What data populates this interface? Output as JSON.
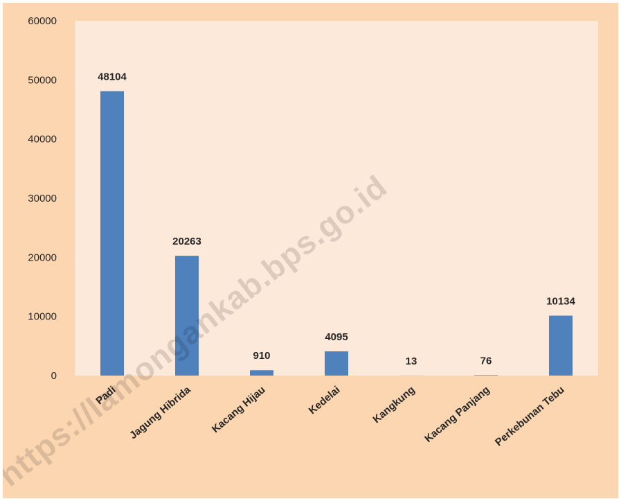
{
  "chart_data": {
    "type": "bar",
    "categories": [
      "Padi",
      "Jagung Hibrida",
      "Kacang Hijau",
      "Kedelai",
      "Kangkung",
      "Kacang Panjang",
      "Perkebunan Tebu"
    ],
    "values": [
      48104,
      20263,
      910,
      4095,
      13,
      76,
      10134
    ],
    "data_labels": [
      "48104",
      "20263",
      "910",
      "4095",
      "13",
      "76",
      "10134"
    ],
    "yticks": [
      "0",
      "10000",
      "20000",
      "30000",
      "40000",
      "50000",
      "60000"
    ],
    "ylim": [
      0,
      60000
    ],
    "title": "",
    "xlabel": "",
    "ylabel": "",
    "grid": false,
    "legend": "none"
  },
  "colors": {
    "frame_bg": "#fbd6b1",
    "plot_bg": "#fde9d9",
    "bar": "#4f81bd",
    "text": "#262626"
  },
  "watermark": "https://lamongankab.bps.go.id"
}
